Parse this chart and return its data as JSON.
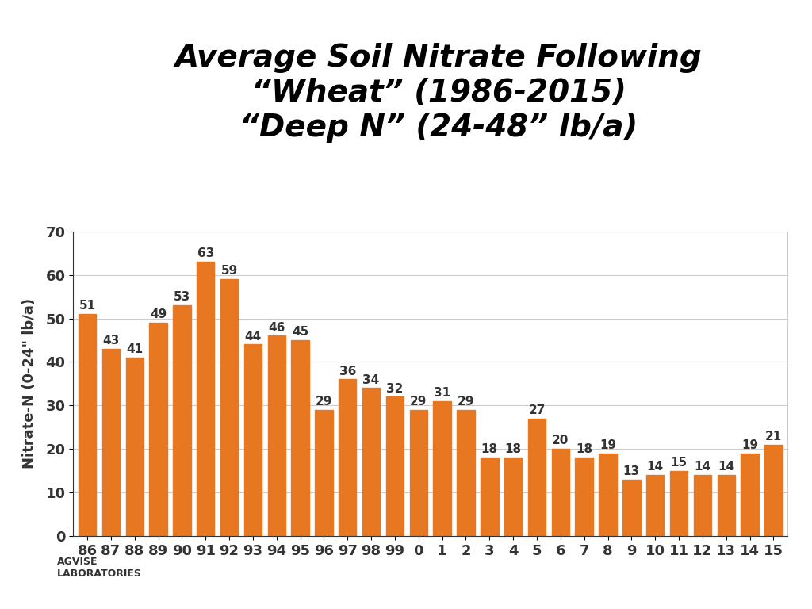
{
  "title_line1": "Average Soil Nitrate Following",
  "title_line2": "“Wheat” (1986-2015)",
  "title_line3": "“Deep N” (24-48” lb/a)",
  "xlabel": "",
  "ylabel": "Nitrate-N (0-24\" lb/a)",
  "categories": [
    "86",
    "87",
    "88",
    "89",
    "90",
    "91",
    "92",
    "93",
    "94",
    "95",
    "96",
    "97",
    "98",
    "99",
    "0",
    "1",
    "2",
    "3",
    "4",
    "5",
    "6",
    "7",
    "8",
    "9",
    "10",
    "11",
    "12",
    "13",
    "14",
    "15"
  ],
  "values": [
    51,
    43,
    41,
    49,
    53,
    63,
    59,
    44,
    46,
    45,
    29,
    36,
    34,
    32,
    29,
    31,
    29,
    18,
    18,
    27,
    20,
    18,
    19,
    13,
    14,
    15,
    14,
    14,
    19,
    21
  ],
  "bar_color": "#E87722",
  "bar_edge_color": "#E87722",
  "ylim": [
    0,
    70
  ],
  "yticks": [
    0,
    10,
    20,
    30,
    40,
    50,
    60,
    70
  ],
  "background_color": "#ffffff",
  "grid_color": "#cccccc",
  "title_fontsize": 28,
  "label_fontsize": 13,
  "bar_label_fontsize": 11,
  "axis_fontsize": 13
}
